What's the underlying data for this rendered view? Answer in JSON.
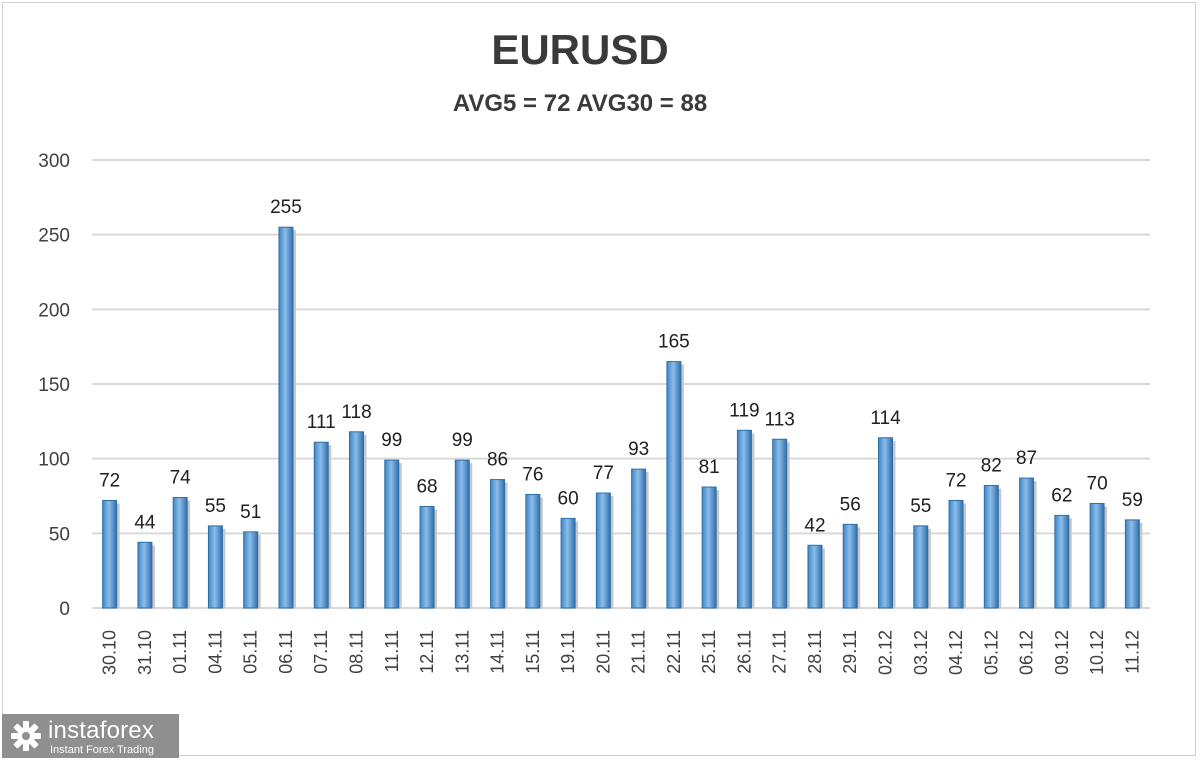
{
  "chart_data": {
    "type": "bar",
    "title": "EURUSD",
    "subtitle": "AVG5 = 72 AVG30 = 88",
    "categories": [
      "30.10",
      "31.10",
      "01.11",
      "04.11",
      "05.11",
      "06.11",
      "07.11",
      "08.11",
      "11.11",
      "12.11",
      "13.11",
      "14.11",
      "15.11",
      "19.11",
      "20.11",
      "21.11",
      "22.11",
      "25.11",
      "26.11",
      "27.11",
      "28.11",
      "29.11",
      "02.12",
      "03.12",
      "04.12",
      "05.12",
      "06.12",
      "09.12",
      "10.12",
      "11.12"
    ],
    "values": [
      72,
      44,
      74,
      55,
      51,
      255,
      111,
      118,
      99,
      68,
      99,
      86,
      76,
      60,
      77,
      93,
      165,
      81,
      119,
      113,
      42,
      56,
      114,
      55,
      72,
      82,
      87,
      62,
      70,
      59
    ],
    "ylim": [
      0,
      300
    ],
    "yticks": [
      0,
      50,
      100,
      150,
      200,
      250,
      300
    ],
    "grid": true,
    "bar_color": "#5b9bd5",
    "bar_color_dark": "#2e6fa8",
    "show_data_labels": true
  },
  "logo": {
    "name": "instaforex",
    "tagline": "Instant Forex Trading"
  }
}
